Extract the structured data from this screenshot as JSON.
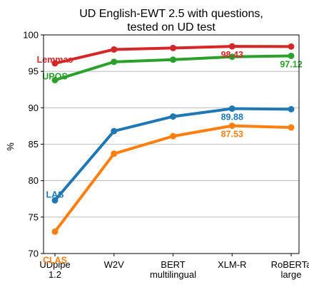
{
  "chart_data": {
    "type": "line",
    "title": [
      "UD English-EWT 2.5 with questions,",
      "tested on UD test"
    ],
    "xlabel": "",
    "ylabel": "%",
    "ylim": [
      70,
      100
    ],
    "yticks": [
      70,
      75,
      80,
      85,
      90,
      95,
      100
    ],
    "ytick_labels": [
      "70",
      "75",
      "80",
      "85",
      "90",
      "95",
      "100"
    ],
    "grid": true,
    "categories": [
      [
        "UDpipe",
        "1.2"
      ],
      [
        "W2V"
      ],
      [
        "BERT",
        "multilingual"
      ],
      [
        "XLM-R"
      ],
      [
        "RoBERTa",
        "large"
      ]
    ],
    "series": [
      {
        "name": "Lemmas",
        "color": "#d62728",
        "values": [
          96.1,
          98.0,
          98.2,
          98.43,
          98.4
        ],
        "value_label": {
          "text": "98.43",
          "index": 3,
          "position": "below"
        }
      },
      {
        "name": "UPOS",
        "color": "#2ca02c",
        "values": [
          93.8,
          96.3,
          96.6,
          97.0,
          97.12
        ],
        "value_label": {
          "text": "97.12",
          "index": 4,
          "position": "below"
        }
      },
      {
        "name": "LAS",
        "color": "#1f77b4",
        "values": [
          77.3,
          86.8,
          88.8,
          89.88,
          89.8
        ],
        "value_label": {
          "text": "89.88",
          "index": 3,
          "position": "below"
        }
      },
      {
        "name": "CLAS",
        "color": "#ff7f0e",
        "values": [
          73.0,
          83.7,
          86.1,
          87.53,
          87.3
        ],
        "value_label": {
          "text": "87.53",
          "index": 3,
          "position": "below"
        }
      }
    ]
  }
}
